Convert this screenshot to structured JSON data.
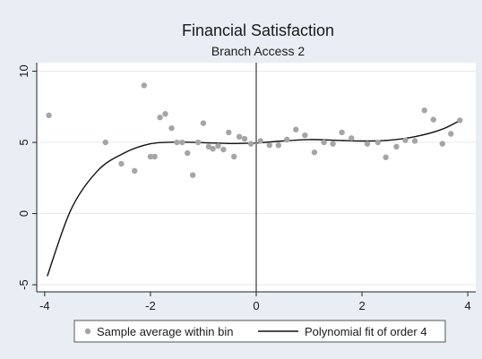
{
  "chart_data": {
    "type": "scatter",
    "title": "Financial Satisfaction",
    "subtitle": "Branch Access 2",
    "xlabel": "",
    "ylabel": "",
    "xlim": [
      -4.15,
      4.15
    ],
    "ylim": [
      -5.5,
      10.6
    ],
    "xticks": [
      -4,
      -2,
      0,
      2,
      4
    ],
    "yticks": [
      -5,
      0,
      5,
      10
    ],
    "xtick_labels": [
      "-4",
      "-2",
      "0",
      "2",
      "4"
    ],
    "ytick_labels": [
      "-5",
      "0",
      "5",
      "10"
    ],
    "grid": "horizontal",
    "cutoff_x": 0,
    "legend_position": "bottom",
    "series": [
      {
        "name": "Sample average within bin",
        "kind": "scatter",
        "color": "#a5a5a5",
        "points": [
          [
            -3.92,
            6.9
          ],
          [
            -2.85,
            5.0
          ],
          [
            -2.55,
            3.5
          ],
          [
            -2.3,
            3.0
          ],
          [
            -2.12,
            9.0
          ],
          [
            -2.0,
            4.0
          ],
          [
            -1.92,
            4.0
          ],
          [
            -1.82,
            6.75
          ],
          [
            -1.72,
            7.0
          ],
          [
            -1.6,
            6.0
          ],
          [
            -1.5,
            5.0
          ],
          [
            -1.4,
            5.0
          ],
          [
            -1.3,
            4.25
          ],
          [
            -1.2,
            2.7
          ],
          [
            -1.1,
            5.0
          ],
          [
            -1.0,
            6.35
          ],
          [
            -0.9,
            4.7
          ],
          [
            -0.82,
            4.55
          ],
          [
            -0.72,
            4.75
          ],
          [
            -0.62,
            4.5
          ],
          [
            -0.52,
            5.7
          ],
          [
            -0.42,
            4.0
          ],
          [
            -0.32,
            5.4
          ],
          [
            -0.22,
            5.25
          ],
          [
            -0.1,
            4.9
          ],
          [
            0.08,
            5.1
          ],
          [
            0.25,
            4.8
          ],
          [
            0.42,
            4.8
          ],
          [
            0.58,
            5.2
          ],
          [
            0.75,
            5.9
          ],
          [
            0.92,
            5.5
          ],
          [
            1.1,
            4.3
          ],
          [
            1.28,
            5.0
          ],
          [
            1.45,
            4.9
          ],
          [
            1.62,
            5.7
          ],
          [
            1.8,
            5.3
          ],
          [
            2.1,
            4.9
          ],
          [
            2.3,
            5.0
          ],
          [
            2.45,
            3.95
          ],
          [
            2.65,
            4.7
          ],
          [
            2.82,
            5.15
          ],
          [
            3.0,
            5.1
          ],
          [
            3.18,
            7.25
          ],
          [
            3.35,
            6.6
          ],
          [
            3.52,
            4.9
          ],
          [
            3.68,
            5.6
          ],
          [
            3.85,
            6.55
          ]
        ]
      },
      {
        "name": "Polynomial fit of order 4",
        "kind": "line",
        "color": "#111111",
        "segments": [
          [
            [
              -3.95,
              -4.4
            ],
            [
              -3.5,
              0.3
            ],
            [
              -3.0,
              3.0
            ],
            [
              -2.5,
              4.25
            ],
            [
              -2.0,
              4.9
            ],
            [
              -1.5,
              5.02
            ],
            [
              -1.0,
              4.98
            ],
            [
              -0.5,
              4.92
            ],
            [
              -0.02,
              4.95
            ]
          ],
          [
            [
              0.02,
              4.95
            ],
            [
              0.5,
              5.1
            ],
            [
              1.0,
              5.2
            ],
            [
              1.5,
              5.15
            ],
            [
              2.0,
              5.1
            ],
            [
              2.5,
              5.15
            ],
            [
              3.0,
              5.4
            ],
            [
              3.5,
              5.9
            ],
            [
              3.88,
              6.6
            ]
          ]
        ]
      }
    ]
  }
}
